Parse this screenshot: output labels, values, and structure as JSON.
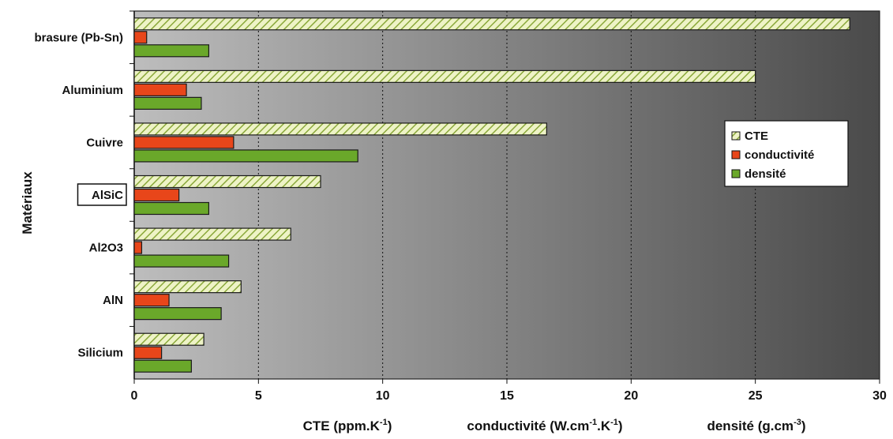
{
  "chart_data": {
    "type": "bar",
    "orientation": "horizontal",
    "categories": [
      "Silicium",
      "AlN",
      "Al2O3",
      "AlSiC",
      "Cuivre",
      "Aluminium",
      "brasure (Pb-Sn)"
    ],
    "highlighted_category": "AlSiC",
    "series": [
      {
        "name": "CTE",
        "values": [
          2.8,
          4.3,
          6.3,
          7.5,
          16.6,
          25.0,
          28.8
        ],
        "color": "#e8f0b8",
        "pattern": "diagonal-hatch",
        "hatch_color": "#7a9a30"
      },
      {
        "name": "conductivité",
        "values": [
          1.1,
          1.4,
          0.3,
          1.8,
          4.0,
          2.1,
          0.5
        ],
        "color": "#e8461a"
      },
      {
        "name": "densité",
        "values": [
          2.3,
          3.5,
          3.8,
          3.0,
          9.0,
          2.7,
          3.0
        ],
        "color": "#6aa82a"
      }
    ],
    "xlim": [
      0,
      30
    ],
    "xticks": [
      0,
      5,
      10,
      15,
      20,
      25,
      30
    ],
    "ylabel": "Matériaux",
    "x_axis_titles": [
      {
        "text": "CTE (ppm.K",
        "sup": "-1",
        "tail": ")"
      },
      {
        "text": "conductivité (W.cm",
        "sup": "-1",
        "mid": ".K",
        "sup2": "-1",
        "tail": ")"
      },
      {
        "text": "densité (g.cm",
        "sup": "-3",
        "tail": ")"
      }
    ],
    "grid": "vertical dotted",
    "legend": "right",
    "plot_background": "gray gradient"
  }
}
